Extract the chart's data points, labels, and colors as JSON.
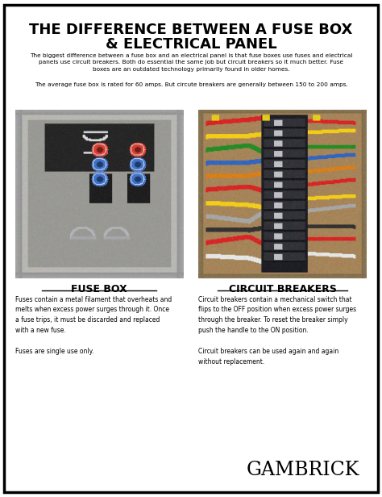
{
  "bg_color": "#ffffff",
  "border_color": "#000000",
  "title_line1": "THE DIFFERENCE BETWEEN A FUSE BOX",
  "title_line2": "& ELECTRICAL PANEL",
  "title_color": "#000000",
  "subtitle1": "The biggest difference between a fuse box and an electrical panel is that fuse boxes use fuses and electrical\npanels use circuit breakers. Both do essential the same job but circuit breakers so it much better. Fuse\nboxes are an outdated technology primarily found in older homes.",
  "subtitle2": "The average fuse box is rated for 60 amps. But circute breakers are generally between 150 to 200 amps.",
  "label_left": "FUSE BOX",
  "label_right": "CIRCUIT BREAKERS",
  "desc_left": "Fuses contain a metal filament that overheats and\nmelts when excess power surges through it. Once\na fuse trips, it must be discarded and replaced\nwith a new fuse.\n\nFuses are single use only.",
  "desc_right": "Circuit breakers contain a mechanical switch that\nflips to the OFF position when excess power surges\nthrough the breaker. To reset the breaker simply\npush the handle to the ON position.\n\nCircuit breakers can be used again and again\nwithout replacement.",
  "brand": "GAMBRICK",
  "figsize": [
    4.74,
    6.16
  ],
  "dpi": 100
}
